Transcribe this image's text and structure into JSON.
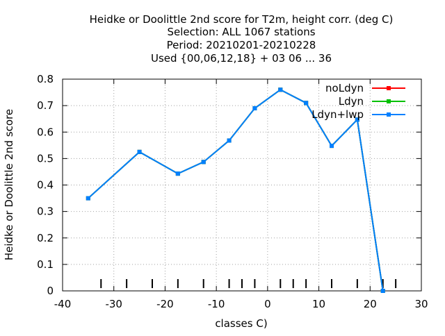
{
  "chart_data": {
    "type": "line",
    "title_lines": [
      "Heidke or Doolittle 2nd score  for T2m, height corr. (deg C)",
      "Selection: ALL   1067 stations",
      "Period: 20210201-20210228",
      "Used {00,06,12,18} + 03 06 ... 36"
    ],
    "xlabel": "classes C)",
    "ylabel": "Heidke or Doolittle 2nd score",
    "xlim": [
      -40,
      30
    ],
    "ylim": [
      0,
      0.8
    ],
    "x_ticks": [
      -40,
      -30,
      -20,
      -10,
      0,
      10,
      20,
      30
    ],
    "x_tick_labels": [
      "-40",
      "-30",
      "-20",
      "-10",
      "0",
      "10",
      "20",
      "30"
    ],
    "y_ticks": [
      0,
      0.1,
      0.2,
      0.3,
      0.4,
      0.5,
      0.6,
      0.7,
      0.8
    ],
    "y_tick_labels": [
      "0",
      "0.1",
      "0.2",
      "0.3",
      "0.4",
      "0.5",
      "0.6",
      "0.7",
      "0.8"
    ],
    "class_marks": [
      -32.5,
      -27.5,
      -22.5,
      -17.5,
      -12.5,
      -7.5,
      -5,
      -2.5,
      2.5,
      5,
      7.5,
      12.5,
      17.5,
      22.5,
      25
    ],
    "grid": true,
    "legend_position": "top-right",
    "x": [
      -35,
      -25,
      -17.5,
      -12.5,
      -7.5,
      -2.5,
      2.5,
      7.5,
      12.5,
      17.5,
      22.5
    ],
    "series": [
      {
        "name": "noLdyn",
        "color": "#ff0000",
        "values": [
          0.35,
          0.525,
          0.443,
          0.487,
          0.568,
          0.69,
          0.76,
          0.71,
          0.548,
          0.647,
          0.0
        ]
      },
      {
        "name": "Ldyn",
        "color": "#00c000",
        "values": [
          0.35,
          0.525,
          0.443,
          0.487,
          0.568,
          0.69,
          0.76,
          0.71,
          0.548,
          0.647,
          0.0
        ]
      },
      {
        "name": "Ldyn+lwp",
        "color": "#0080ff",
        "values": [
          0.35,
          0.525,
          0.443,
          0.487,
          0.568,
          0.69,
          0.76,
          0.71,
          0.548,
          0.647,
          0.0
        ]
      }
    ]
  }
}
